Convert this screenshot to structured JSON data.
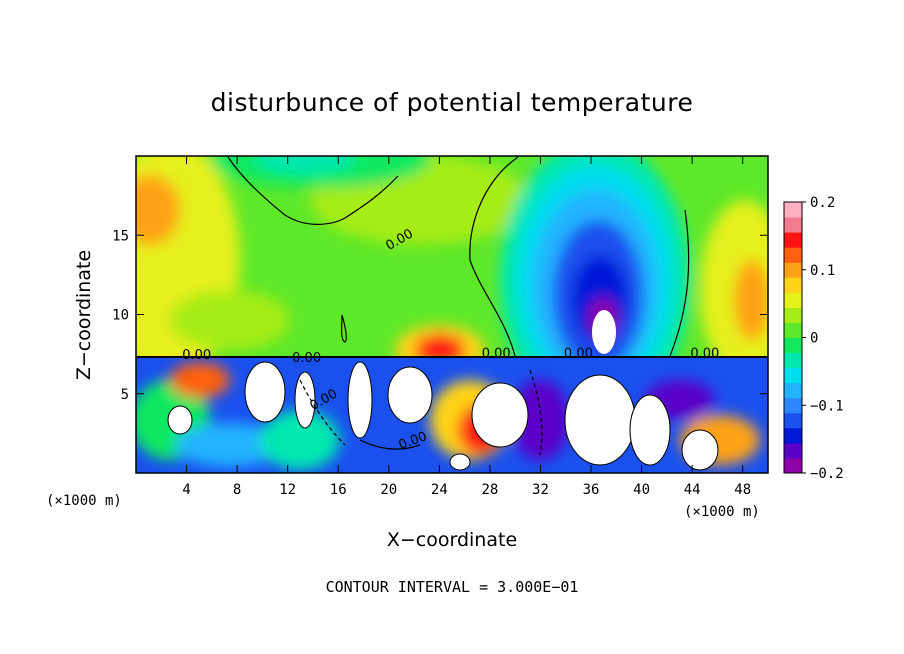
{
  "chart_data": {
    "type": "heatmap",
    "title": "disturbunce of potential temperature",
    "xlabel": "X−coordinate",
    "ylabel": "Z−coordinate",
    "x_unit": "(×1000 m)",
    "z_unit": "(×1000 m)",
    "xlim": [
      0,
      50
    ],
    "ylim": [
      0,
      20
    ],
    "x_ticks": [
      4,
      8,
      12,
      16,
      20,
      24,
      28,
      32,
      36,
      40,
      44,
      48
    ],
    "x_tick_labels": [
      "4",
      "8",
      "12",
      "16",
      "20",
      "24",
      "28",
      "32",
      "36",
      "40",
      "44",
      "48"
    ],
    "y_ticks": [
      5,
      10,
      15
    ],
    "y_tick_labels": [
      "5",
      "10",
      "15"
    ],
    "colorbar": {
      "range": [
        -0.2,
        0.2
      ],
      "ticks": [
        0.2,
        0.1,
        0,
        -0.1,
        -0.2
      ],
      "tick_labels": [
        "0.2",
        "0.1",
        "0",
        "−0.1",
        "−0.2"
      ],
      "colors": [
        "#9000a8",
        "#5a00c8",
        "#0018d8",
        "#1a50ee",
        "#2e86ff",
        "#22b4ff",
        "#00dcf0",
        "#00e8b0",
        "#10e860",
        "#5ee82a",
        "#a6ec18",
        "#e6f01c",
        "#ffd418",
        "#ffa218",
        "#ff6010",
        "#ff1414",
        "#f47a90",
        "#ffb0c0"
      ]
    },
    "contour_labels": [
      "0.00",
      "0.00",
      "0.00",
      "0.00",
      "0.00",
      "0.00",
      "0.00",
      "0.00"
    ],
    "footer": "CONTOUR INTERVAL = 3.000E−01",
    "regions": [
      {
        "label": "green upper-layer background",
        "x": 0,
        "z": 13,
        "value": 0.02
      },
      {
        "label": "cold anomaly above x~36",
        "x": 36,
        "z": 12,
        "value": -0.17
      },
      {
        "label": "warm anomaly near x~24",
        "x": 24,
        "z": 8,
        "value": 0.13
      },
      {
        "label": "warm anomaly near x~48",
        "x": 48,
        "z": 11,
        "value": 0.1
      },
      {
        "label": "cyan patch near top at x~14",
        "x": 14,
        "z": 19.5,
        "value": -0.04
      }
    ]
  }
}
